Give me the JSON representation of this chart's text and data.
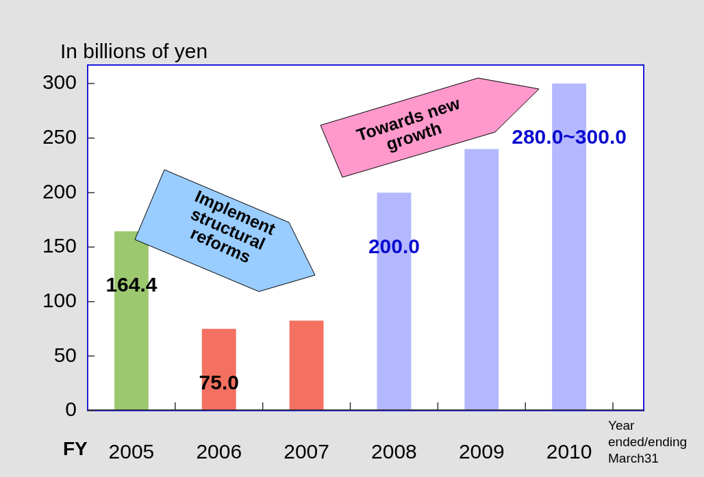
{
  "chart_data": {
    "type": "bar",
    "ylabel": "In billions of yen",
    "xlabel": "FY",
    "categories": [
      "2005",
      "2006",
      "2007",
      "2008",
      "2009",
      "2010"
    ],
    "values": [
      164.4,
      75,
      82.5,
      200,
      240,
      300
    ],
    "colors": [
      "#9cc870",
      "#f47060",
      "#f47060",
      "#b4b8ff",
      "#b4b8ff",
      "#b4b8ff"
    ],
    "value_labels": [
      "164.4",
      "75.0",
      null,
      "200.0",
      null,
      "280.0~300.0"
    ],
    "ylim": [
      0,
      317
    ],
    "yticks": [
      0,
      50,
      100,
      150,
      200,
      250,
      300
    ],
    "grid": false,
    "legend": false,
    "annotations": [
      "Implement structural reforms",
      "Towards new growth",
      "Year ended/ending March31"
    ]
  }
}
